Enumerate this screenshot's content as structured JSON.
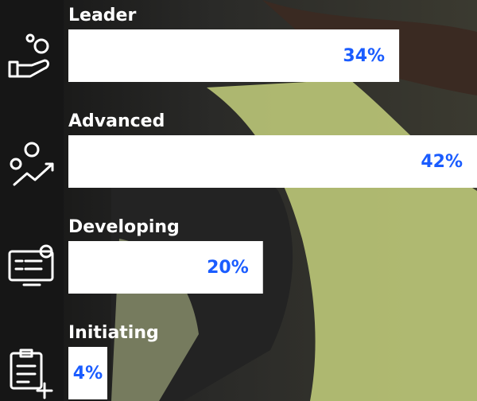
{
  "chart_data": {
    "type": "bar",
    "orientation": "horizontal",
    "categories": [
      "Leader",
      "Advanced",
      "Developing",
      "Initiating"
    ],
    "values": [
      34,
      42,
      20,
      4
    ],
    "value_labels": [
      "34%",
      "42%",
      "20%",
      "4%"
    ],
    "color": "#ffffff",
    "label_color": "#1a5cff"
  }
}
